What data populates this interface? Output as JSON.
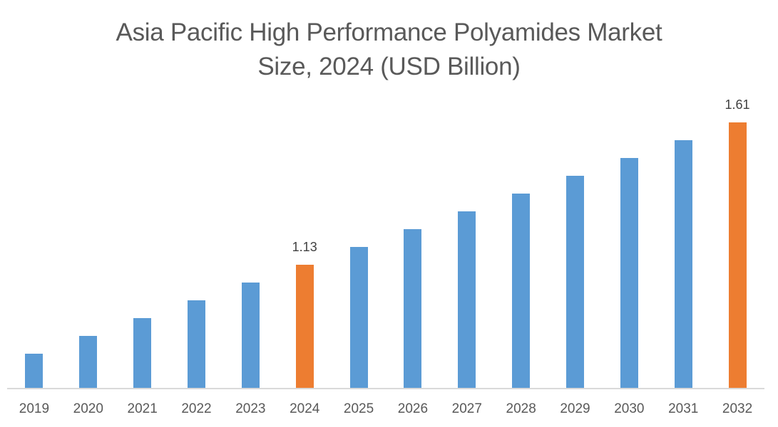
{
  "chart_data": {
    "type": "bar",
    "title": "Asia Pacific High Performance Polyamides Market Size, 2024 (USD Billion)",
    "title_lines": [
      "Asia Pacific High Performance Polyamides Market",
      "Size, 2024 (USD Billion)"
    ],
    "xlabel": "",
    "ylabel": "",
    "categories": [
      "2019",
      "2020",
      "2021",
      "2022",
      "2023",
      "2024",
      "2025",
      "2026",
      "2027",
      "2028",
      "2029",
      "2030",
      "2031",
      "2032"
    ],
    "values": [
      0.83,
      0.89,
      0.95,
      1.01,
      1.07,
      1.13,
      1.19,
      1.25,
      1.31,
      1.37,
      1.43,
      1.49,
      1.55,
      1.61
    ],
    "data_labels": [
      {
        "category": "2024",
        "text": "1.13"
      },
      {
        "category": "2032",
        "text": "1.61"
      }
    ],
    "highlighted": [
      "2024",
      "2032"
    ],
    "colors": {
      "default": "#5b9bd5",
      "highlight": "#ed7d31"
    },
    "grid": false,
    "legend": null,
    "y_axis_visible": false
  }
}
